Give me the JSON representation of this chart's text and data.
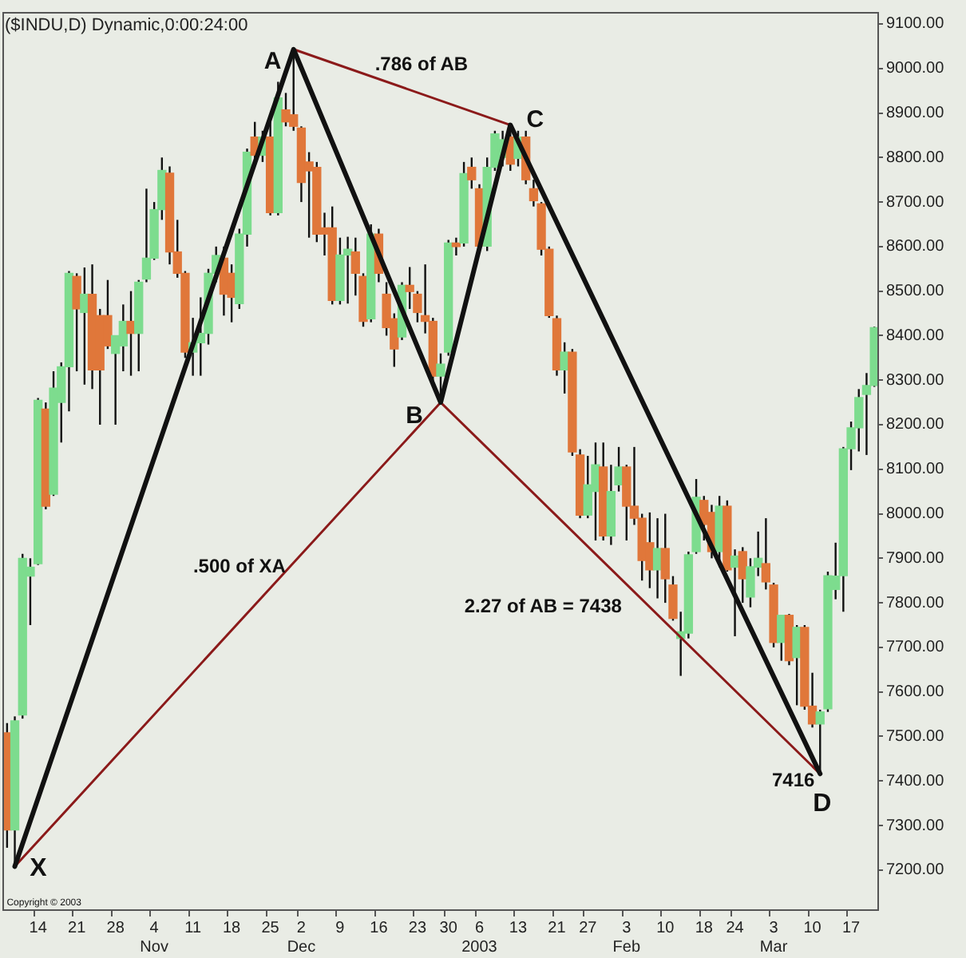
{
  "chart_data": {
    "type": "candlestick",
    "title": "($INDU,D) Dynamic,0:00:24:00",
    "categories": [
      null,
      null,
      null,
      null,
      "14",
      null,
      null,
      null,
      null,
      "21",
      null,
      null,
      null,
      null,
      "28",
      null,
      null,
      null,
      null,
      "4\nNov",
      null,
      null,
      null,
      null,
      "11",
      null,
      null,
      null,
      null,
      "18",
      null,
      null,
      null,
      null,
      "25",
      null,
      null,
      null,
      "2\nDec",
      null,
      null,
      null,
      null,
      "9",
      null,
      null,
      null,
      null,
      "16",
      null,
      null,
      null,
      null,
      "23",
      null,
      null,
      null,
      "30",
      null,
      null,
      null,
      "6\n2003",
      null,
      null,
      null,
      null,
      "13",
      null,
      null,
      null,
      null,
      "21",
      null,
      null,
      null,
      "27",
      null,
      null,
      null,
      null,
      "3\nFeb",
      null,
      null,
      null,
      null,
      "10",
      null,
      null,
      null,
      null,
      "18",
      null,
      null,
      null,
      "24",
      null,
      null,
      null,
      null,
      "3\nMar",
      null,
      null,
      null,
      null,
      "10",
      null,
      null,
      null,
      null,
      "17",
      null,
      null,
      null
    ],
    "ohlc": [
      [
        7508,
        7530,
        7250,
        7290
      ],
      [
        7290,
        7545,
        7208,
        7535
      ],
      [
        7548,
        7910,
        7540,
        7900
      ],
      [
        7860,
        7900,
        7750,
        7880
      ],
      [
        7888,
        8260,
        7885,
        8255
      ],
      [
        8235,
        8250,
        8010,
        8017
      ],
      [
        8044,
        8320,
        8040,
        8282
      ],
      [
        8250,
        8340,
        8160,
        8330
      ],
      [
        8330,
        8545,
        8230,
        8540
      ],
      [
        8533,
        8540,
        8320,
        8460
      ],
      [
        8452,
        8553,
        8290,
        8493
      ],
      [
        8493,
        8560,
        8280,
        8323
      ],
      [
        8445,
        8460,
        8200,
        8323
      ],
      [
        8445,
        8525,
        8370,
        8377
      ],
      [
        8360,
        8400,
        8200,
        8400
      ],
      [
        8377,
        8470,
        8320,
        8432
      ],
      [
        8432,
        8500,
        8310,
        8405
      ],
      [
        8405,
        8525,
        8320,
        8520
      ],
      [
        8527,
        8730,
        8520,
        8574
      ],
      [
        8574,
        8700,
        8570,
        8683
      ],
      [
        8683,
        8800,
        8660,
        8771
      ],
      [
        8765,
        8780,
        8560,
        8588
      ],
      [
        8588,
        8660,
        8530,
        8540
      ],
      [
        8540,
        8545,
        8350,
        8363
      ],
      [
        8363,
        8440,
        8310,
        8384
      ],
      [
        8384,
        8486,
        8310,
        8405
      ],
      [
        8405,
        8550,
        8380,
        8540
      ],
      [
        8540,
        8600,
        8520,
        8580
      ],
      [
        8574,
        8600,
        8445,
        8493
      ],
      [
        8540,
        8560,
        8430,
        8486
      ],
      [
        8472,
        8640,
        8460,
        8628
      ],
      [
        8628,
        8820,
        8600,
        8812
      ],
      [
        8846,
        8880,
        8790,
        8805
      ],
      [
        8805,
        8860,
        8790,
        8846
      ],
      [
        8846,
        8880,
        8670,
        8676
      ],
      [
        8676,
        8970,
        8670,
        8934
      ],
      [
        8907,
        8945,
        8870,
        8880
      ],
      [
        8896,
        9043,
        8860,
        8870
      ],
      [
        8866,
        8870,
        8700,
        8744
      ],
      [
        8790,
        8812,
        8620,
        8770
      ],
      [
        8778,
        8790,
        8610,
        8628
      ],
      [
        8642,
        8676,
        8580,
        8628
      ],
      [
        8642,
        8690,
        8470,
        8479
      ],
      [
        8479,
        8620,
        8470,
        8581
      ],
      [
        8581,
        8622,
        8472,
        8594
      ],
      [
        8588,
        8620,
        8490,
        8540
      ],
      [
        8533,
        8540,
        8420,
        8432
      ],
      [
        8438,
        8650,
        8430,
        8628
      ],
      [
        8628,
        8640,
        8520,
        8540
      ],
      [
        8493,
        8520,
        8400,
        8418
      ],
      [
        8438,
        8450,
        8330,
        8370
      ],
      [
        8397,
        8520,
        8390,
        8513
      ],
      [
        8513,
        8554,
        8460,
        8499
      ],
      [
        8493,
        8500,
        8430,
        8452
      ],
      [
        8445,
        8560,
        8405,
        8432
      ],
      [
        8432,
        8440,
        8290,
        8309
      ],
      [
        8309,
        8360,
        8250,
        8336
      ],
      [
        8363,
        8615,
        8355,
        8608
      ],
      [
        8608,
        8620,
        8580,
        8600
      ],
      [
        8608,
        8790,
        8600,
        8764
      ],
      [
        8778,
        8800,
        8730,
        8750
      ],
      [
        8730,
        8740,
        8590,
        8601
      ],
      [
        8601,
        8800,
        8590,
        8778
      ],
      [
        8778,
        8860,
        8770,
        8853
      ],
      [
        8800,
        8860,
        8780,
        8840
      ],
      [
        8846,
        8873,
        8770,
        8785
      ],
      [
        8798,
        8860,
        8780,
        8846
      ],
      [
        8846,
        8860,
        8740,
        8750
      ],
      [
        8730,
        8750,
        8690,
        8703
      ],
      [
        8696,
        8700,
        8580,
        8594
      ],
      [
        8594,
        8600,
        8440,
        8445
      ],
      [
        8438,
        8445,
        8310,
        8323
      ],
      [
        8323,
        8385,
        8270,
        8363
      ],
      [
        8363,
        8370,
        8130,
        8139
      ],
      [
        8132,
        8145,
        7990,
        7997
      ],
      [
        7997,
        8130,
        7990,
        8065
      ],
      [
        8050,
        8160,
        7940,
        8110
      ],
      [
        8105,
        8160,
        7940,
        7950
      ],
      [
        7950,
        8110,
        7930,
        8050
      ],
      [
        8065,
        8150,
        8050,
        8105
      ],
      [
        8105,
        8110,
        7940,
        8017
      ],
      [
        8017,
        8150,
        7975,
        7990
      ],
      [
        7990,
        8000,
        7850,
        7895
      ],
      [
        7935,
        8003,
        7833,
        7874
      ],
      [
        7874,
        7990,
        7810,
        7922
      ],
      [
        7922,
        8000,
        7800,
        7854
      ],
      [
        7840,
        7860,
        7760,
        7765
      ],
      [
        7720,
        7780,
        7636,
        7735
      ],
      [
        7732,
        7915,
        7720,
        7908
      ],
      [
        7915,
        8078,
        7910,
        8037
      ],
      [
        8030,
        8040,
        7940,
        7976
      ],
      [
        8003,
        8020,
        7900,
        7915
      ],
      [
        7915,
        8040,
        7880,
        8017
      ],
      [
        8017,
        8030,
        7870,
        7874
      ],
      [
        7880,
        7920,
        7725,
        7905
      ],
      [
        7915,
        7925,
        7800,
        7854
      ],
      [
        7813,
        7900,
        7790,
        7881
      ],
      [
        7880,
        7960,
        7860,
        7900
      ],
      [
        7888,
        7990,
        7830,
        7847
      ],
      [
        7840,
        7845,
        7700,
        7711
      ],
      [
        7711,
        7772,
        7670,
        7772
      ],
      [
        7772,
        7775,
        7660,
        7670
      ],
      [
        7677,
        7750,
        7570,
        7745
      ],
      [
        7745,
        7750,
        7560,
        7568
      ],
      [
        7568,
        7643,
        7520,
        7528
      ],
      [
        7528,
        7560,
        7416,
        7555
      ],
      [
        7562,
        7870,
        7555,
        7861
      ],
      [
        7830,
        7935,
        7808,
        7860
      ],
      [
        7861,
        8150,
        7780,
        8146
      ],
      [
        8146,
        8207,
        8098,
        8193
      ],
      [
        8193,
        8280,
        8140,
        8261
      ],
      [
        8268,
        8316,
        8132,
        8288
      ],
      [
        8288,
        8420,
        8285,
        8418
      ]
    ],
    "colors": [
      "#e0773a",
      "#7ddc8e",
      "#7ddc8e",
      "#7ddc8e",
      "#7ddc8e",
      "#e0773a",
      "#7ddc8e",
      "#7ddc8e",
      "#7ddc8e",
      "#e0773a",
      "#7ddc8e",
      "#e0773a",
      "#e0773a",
      "#e0773a",
      "#7ddc8e",
      "#7ddc8e",
      "#e0773a",
      "#7ddc8e",
      "#7ddc8e",
      "#7ddc8e",
      "#7ddc8e",
      "#e0773a",
      "#e0773a",
      "#e0773a",
      "#7ddc8e",
      "#7ddc8e",
      "#7ddc8e",
      "#7ddc8e",
      "#e0773a",
      "#e0773a",
      "#7ddc8e",
      "#7ddc8e",
      "#e0773a",
      "#7ddc8e",
      "#e0773a",
      "#7ddc8e",
      "#e0773a",
      "#e0773a",
      "#e0773a",
      "#e0773a",
      "#e0773a",
      "#e0773a",
      "#e0773a",
      "#7ddc8e",
      "#7ddc8e",
      "#e0773a",
      "#e0773a",
      "#7ddc8e",
      "#e0773a",
      "#e0773a",
      "#e0773a",
      "#7ddc8e",
      "#e0773a",
      "#e0773a",
      "#e0773a",
      "#e0773a",
      "#7ddc8e",
      "#7ddc8e",
      "#e0773a",
      "#7ddc8e",
      "#e0773a",
      "#e0773a",
      "#7ddc8e",
      "#7ddc8e",
      "#7ddc8e",
      "#e0773a",
      "#7ddc8e",
      "#e0773a",
      "#e0773a",
      "#e0773a",
      "#e0773a",
      "#e0773a",
      "#7ddc8e",
      "#e0773a",
      "#e0773a",
      "#7ddc8e",
      "#7ddc8e",
      "#e0773a",
      "#7ddc8e",
      "#7ddc8e",
      "#e0773a",
      "#e0773a",
      "#e0773a",
      "#e0773a",
      "#7ddc8e",
      "#e0773a",
      "#e0773a",
      "#7ddc8e",
      "#7ddc8e",
      "#7ddc8e",
      "#e0773a",
      "#e0773a",
      "#7ddc8e",
      "#e0773a",
      "#7ddc8e",
      "#e0773a",
      "#7ddc8e",
      "#7ddc8e",
      "#e0773a",
      "#e0773a",
      "#7ddc8e",
      "#e0773a",
      "#7ddc8e",
      "#e0773a",
      "#e0773a",
      "#7ddc8e",
      "#7ddc8e",
      "#7ddc8e",
      "#7ddc8e",
      "#7ddc8e",
      "#7ddc8e",
      "#7ddc8e",
      "#7ddc8e"
    ],
    "series": [
      {
        "type": "line",
        "color": "#111111",
        "values": [
          null,
          7208,
          null,
          null,
          null,
          null,
          null,
          null,
          null,
          null,
          null,
          null,
          null,
          null,
          null,
          null,
          null,
          null,
          null,
          null,
          null,
          null,
          null,
          null,
          null,
          null,
          null,
          null,
          null,
          null,
          null,
          null,
          null,
          null,
          null,
          null,
          null,
          9043,
          null,
          null,
          null,
          null,
          null,
          null,
          null,
          null,
          null,
          null,
          null,
          null,
          null,
          null,
          null,
          null,
          null,
          null,
          8250,
          null,
          null,
          null,
          null,
          null,
          null,
          null,
          null,
          8873,
          null,
          null,
          null,
          null,
          null,
          null,
          null,
          null,
          null,
          null,
          null,
          null,
          null,
          null,
          null,
          null,
          null,
          null,
          null,
          null,
          null,
          null,
          null,
          null,
          null,
          null,
          null,
          null,
          null,
          null,
          null,
          null,
          null,
          null,
          null,
          null,
          null,
          null,
          null,
          7416,
          null,
          null,
          null,
          null,
          null,
          null,
          null
        ]
      },
      {
        "type": "line",
        "color": "#8b1a1a",
        "values": [
          null,
          7208,
          null,
          null,
          null,
          null,
          null,
          null,
          null,
          null,
          null,
          null,
          null,
          null,
          null,
          null,
          null,
          null,
          null,
          null,
          null,
          null,
          null,
          null,
          null,
          null,
          null,
          null,
          null,
          null,
          null,
          null,
          null,
          null,
          null,
          null,
          null,
          null,
          null,
          null,
          null,
          null,
          null,
          null,
          null,
          null,
          null,
          null,
          null,
          null,
          null,
          null,
          null,
          null,
          null,
          null,
          8250,
          null,
          null,
          null,
          null,
          null,
          null,
          null,
          null,
          null,
          null,
          null,
          null,
          null,
          null,
          null,
          null,
          null,
          null,
          null,
          null,
          null,
          null,
          null,
          null,
          null,
          null,
          null,
          null,
          null,
          null,
          null,
          null,
          null,
          null,
          null,
          null,
          null,
          null,
          null,
          null,
          null,
          null,
          null,
          null,
          null,
          null,
          null,
          null,
          7416,
          null,
          null,
          null,
          null,
          null,
          null,
          null
        ]
      },
      {
        "type": "line",
        "color": "#8b1a1a",
        "values": [
          null,
          null,
          null,
          null,
          null,
          null,
          null,
          null,
          null,
          null,
          null,
          null,
          null,
          null,
          null,
          null,
          null,
          null,
          null,
          null,
          null,
          null,
          null,
          null,
          null,
          null,
          null,
          null,
          null,
          null,
          null,
          null,
          null,
          null,
          null,
          null,
          null,
          9043,
          null,
          null,
          null,
          null,
          null,
          null,
          null,
          null,
          null,
          null,
          null,
          null,
          null,
          null,
          null,
          null,
          null,
          null,
          null,
          null,
          null,
          null,
          null,
          null,
          null,
          null,
          null,
          8873,
          null,
          null,
          null,
          null,
          null,
          null,
          null,
          null,
          null,
          null,
          null,
          null,
          null,
          null,
          null,
          null,
          null,
          null,
          null,
          null,
          null,
          null,
          null,
          null,
          null,
          null,
          null,
          null,
          null,
          null,
          null,
          null,
          null,
          null,
          null,
          null,
          null,
          null,
          null,
          null,
          null,
          null,
          null,
          null,
          null,
          null,
          null
        ]
      }
    ],
    "ylim": [
      7110,
      9125
    ],
    "yticks": [
      {
        "value": 7200,
        "label": "7200.00"
      },
      {
        "value": 7300,
        "label": "7300.00"
      },
      {
        "value": 7400,
        "label": "7400.00"
      },
      {
        "value": 7500,
        "label": "7500.00"
      },
      {
        "value": 7600,
        "label": "7600.00"
      },
      {
        "value": 7700,
        "label": "7700.00"
      },
      {
        "value": 7800,
        "label": "7800.00"
      },
      {
        "value": 7900,
        "label": "7900.00"
      },
      {
        "value": 8000,
        "label": "8000.00"
      },
      {
        "value": 8100,
        "label": "8100.00"
      },
      {
        "value": 8200,
        "label": "8200.00"
      },
      {
        "value": 8300,
        "label": "8300.00"
      },
      {
        "value": 8400,
        "label": "8400.00"
      },
      {
        "value": 8500,
        "label": "8500.00"
      },
      {
        "value": 8600,
        "label": "8600.00"
      },
      {
        "value": 8700,
        "label": "8700.00"
      },
      {
        "value": 8800,
        "label": "8800.00"
      },
      {
        "value": 8900,
        "label": "8900.00"
      },
      {
        "value": 9000,
        "label": "9000.00"
      },
      {
        "value": 9100,
        "label": "9100.00"
      }
    ],
    "annotations": [
      "X",
      "A",
      "B",
      "C",
      "D",
      ".786 of AB",
      ".500 of XA",
      "2.27 of AB = 7438",
      "7416",
      "Copyright © 2003"
    ],
    "legend": false,
    "grid": false
  }
}
